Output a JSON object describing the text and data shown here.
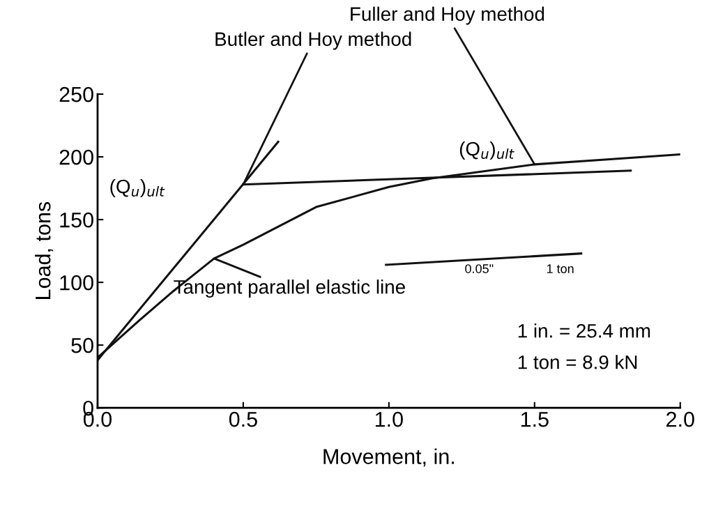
{
  "chart_data": {
    "type": "line",
    "xlabel": "Movement, in.",
    "ylabel": "Load, tons",
    "xlim": [
      0,
      2.0
    ],
    "ylim": [
      0,
      250
    ],
    "xticks": [
      {
        "value": 0,
        "label": "0.0"
      },
      {
        "value": 0.5,
        "label": "0.5"
      },
      {
        "value": 1.0,
        "label": "1.0"
      },
      {
        "value": 1.5,
        "label": "1.5"
      },
      {
        "value": 2.0,
        "label": "2.0"
      }
    ],
    "yticks": [
      0,
      50,
      100,
      150,
      200,
      250
    ],
    "grid": false,
    "legend": false,
    "marker": "none",
    "line_style": "solid",
    "series": [
      {
        "color": "#111111",
        "x": [
          0,
          0.14,
          0.26,
          0.4,
          0.5,
          0.75,
          1.0,
          1.15,
          1.5,
          1.75,
          2.0
        ],
        "values": [
          40,
          69,
          93,
          119,
          130,
          160,
          176,
          183,
          194,
          198,
          202
        ]
      },
      {
        "color": "#111111",
        "x": [
          0,
          0.62
        ],
        "values": [
          38,
          212
        ]
      },
      {
        "color": "#111111",
        "x": [
          0.5,
          1.83
        ],
        "values": [
          178,
          189
        ]
      },
      {
        "color": "#111111",
        "x": [
          0.99,
          1.66
        ],
        "values": [
          114,
          123
        ]
      }
    ],
    "annotations": [
      {
        "text": "Fuller and Hoy method",
        "x": 1.5,
        "y": 194
      },
      {
        "text": "Butler and Hoy method",
        "x": 0.5,
        "y": 178
      },
      "(Q$_{u}$)$_{ult}$",
      "(Q$_{u}$)$_{ult}$",
      {
        "text": "Tangent parallel elastic line",
        "x": 0.4,
        "y": 119
      },
      "0.05\"",
      "1 ton",
      "1 in. = 25.4 mm",
      "1 ton = 8.9 kN"
    ]
  }
}
